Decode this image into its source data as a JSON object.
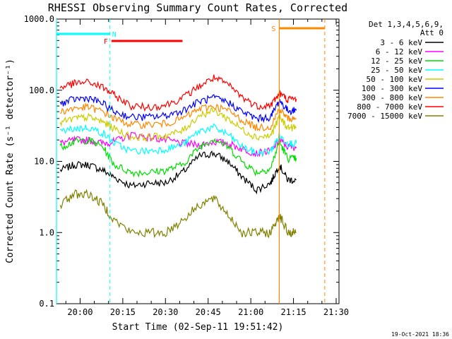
{
  "chart_data": {
    "type": "line",
    "title": "RHESSI Observing Summary Count Rates, Corrected",
    "xlabel": "Start Time (02-Sep-11 19:51:42)",
    "ylabel": "Corrected Count Rate (s⁻¹ detector⁻¹)",
    "y_scale": "log",
    "ylim": [
      0.1,
      1000
    ],
    "xlim": [
      "19:51:42",
      "21:31:00"
    ],
    "x_tick_labels": [
      "20:00",
      "20:15",
      "20:30",
      "20:45",
      "21:00",
      "21:15",
      "21:30"
    ],
    "y_tick_labels": [
      "0.1",
      "1.0",
      "10.0",
      "100.0",
      "1000.0"
    ],
    "legend_header": [
      "Det 1,3,4,5,6,9,",
      "Att 0"
    ],
    "legend_placement": "right",
    "timestamp": "19-Oct-2021 18:36",
    "x": [
      "19:53",
      "19:58",
      "20:03",
      "20:08",
      "20:12",
      "20:18",
      "20:24",
      "20:30",
      "20:36",
      "20:42",
      "20:47",
      "20:52",
      "20:57",
      "21:02",
      "21:07",
      "21:10",
      "21:13",
      "21:16"
    ],
    "series": [
      {
        "name": "3 - 6 keV",
        "color": "#000000",
        "values": [
          7.5,
          9,
          9,
          7.5,
          6,
          4.5,
          5,
          5,
          7,
          12,
          13,
          10,
          6,
          4,
          5,
          9,
          5.5,
          5.5
        ]
      },
      {
        "name": "6 - 12 keV",
        "color": "#ff00ff",
        "values": [
          18,
          20,
          20,
          18,
          19,
          24,
          22,
          20,
          18,
          17,
          19,
          18,
          15,
          13,
          14,
          20,
          16,
          16
        ]
      },
      {
        "name": "12 - 25 keV",
        "color": "#00dd00",
        "values": [
          16,
          19,
          20,
          16,
          9,
          7,
          7,
          7.5,
          9,
          16,
          21,
          16,
          10,
          7,
          8,
          19,
          11,
          11
        ]
      },
      {
        "name": "25 - 50 keV",
        "color": "#00ffff",
        "values": [
          26,
          29,
          30,
          25,
          18,
          14,
          14,
          15,
          17,
          27,
          30,
          24,
          16,
          13,
          14,
          23,
          18,
          18
        ]
      },
      {
        "name": "50 - 100 keV",
        "color": "#cccc00",
        "values": [
          35,
          40,
          42,
          36,
          29,
          22,
          22,
          23,
          27,
          45,
          52,
          40,
          28,
          22,
          23,
          42,
          30,
          30
        ]
      },
      {
        "name": "100 - 300 keV",
        "color": "#0000ff",
        "values": [
          65,
          75,
          78,
          65,
          50,
          42,
          42,
          44,
          52,
          70,
          78,
          68,
          50,
          40,
          42,
          72,
          52,
          52
        ]
      },
      {
        "name": "300 - 800 keV",
        "color": "#ff8800",
        "values": [
          50,
          56,
          58,
          50,
          40,
          33,
          33,
          34,
          40,
          55,
          60,
          52,
          38,
          30,
          31,
          55,
          40,
          40
        ]
      },
      {
        "name": "800 - 7000 keV",
        "color": "#ff0000",
        "values": [
          110,
          125,
          130,
          110,
          85,
          60,
          58,
          62,
          78,
          115,
          150,
          120,
          80,
          60,
          62,
          90,
          75,
          75
        ]
      },
      {
        "name": "7000 - 15000 keV",
        "color": "#808000",
        "values": [
          2.5,
          3.5,
          3.5,
          2.5,
          1.5,
          1,
          1,
          1,
          1.5,
          2.5,
          3,
          1.8,
          1,
          1,
          1,
          1.8,
          1,
          1
        ]
      }
    ],
    "flags": [
      {
        "label": "N",
        "color": "#00ffff",
        "start": "19:51:42",
        "end": "20:10:30",
        "vertical": "dashed"
      },
      {
        "label": "F",
        "color": "#ff0000",
        "start": "20:11:00",
        "end": "20:36:00",
        "vertical": "none"
      },
      {
        "label": "S",
        "color": "#ff8800",
        "start": "21:10:00",
        "end": "21:26:00",
        "vertical": "dashed"
      }
    ]
  }
}
